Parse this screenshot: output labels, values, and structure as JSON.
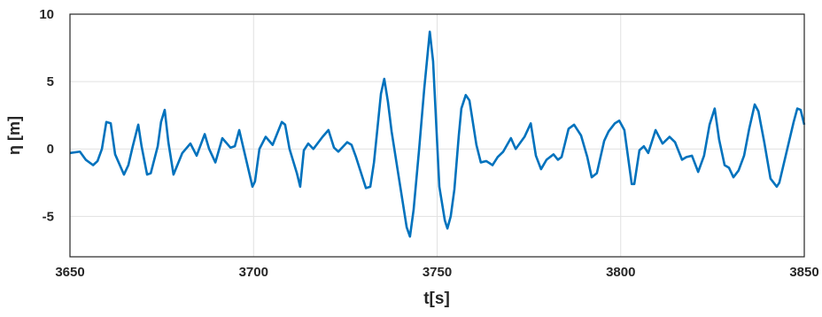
{
  "chart_data": {
    "type": "line",
    "xlabel": "t[s]",
    "ylabel": "η [m]",
    "xlim": [
      3650,
      3850
    ],
    "xticks": [
      3650,
      3700,
      3750,
      3800,
      3850
    ],
    "ylim": [
      -8,
      10
    ],
    "yticks": [
      -5,
      0,
      5,
      10
    ],
    "grid": true,
    "series": [
      {
        "color": "#0072bd",
        "x": [
          3650.0,
          3652.7,
          3654.3,
          3656.3,
          3657.5,
          3658.7,
          3659.9,
          3661.1,
          3662.3,
          3664.7,
          3665.9,
          3667.1,
          3668.6,
          3669.5,
          3671.0,
          3672.0,
          3673.9,
          3674.8,
          3675.8,
          3676.8,
          3678.2,
          3680.6,
          3682.8,
          3684.5,
          3686.7,
          3687.9,
          3689.6,
          3691.5,
          3693.7,
          3694.9,
          3696.1,
          3699.7,
          3700.4,
          3701.6,
          3703.3,
          3705.2,
          3707.7,
          3708.6,
          3709.8,
          3711.8,
          3712.7,
          3713.7,
          3714.9,
          3716.3,
          3718.8,
          3720.4,
          3721.9,
          3723.1,
          3725.5,
          3726.7,
          3727.9,
          3730.6,
          3731.8,
          3732.8,
          3734.7,
          3735.6,
          3736.6,
          3737.6,
          3739.5,
          3741.7,
          3742.6,
          3743.6,
          3745.1,
          3746.5,
          3748.0,
          3748.9,
          3750.6,
          3752.1,
          3752.8,
          3753.7,
          3754.7,
          3755.9,
          3756.6,
          3757.8,
          3758.8,
          3760.7,
          3761.9,
          3763.4,
          3765.1,
          3766.5,
          3768.0,
          3770.1,
          3771.4,
          3773.8,
          3775.5,
          3776.9,
          3778.3,
          3779.8,
          3781.7,
          3782.9,
          3783.9,
          3785.8,
          3787.3,
          3789.2,
          3790.9,
          3792.1,
          3793.5,
          3795.5,
          3796.7,
          3798.4,
          3799.6,
          3801.0,
          3803.0,
          3803.7,
          3805.1,
          3806.3,
          3807.5,
          3809.5,
          3811.4,
          3813.3,
          3814.8,
          3816.7,
          3817.9,
          3819.4,
          3821.1,
          3822.7,
          3824.2,
          3825.6,
          3826.8,
          3828.3,
          3829.5,
          3830.7,
          3832.1,
          3833.6,
          3835.0,
          3836.5,
          3837.5,
          3839.1,
          3840.8,
          3842.5,
          3843.2,
          3847.1,
          3848.1,
          3849.0,
          3850.0
        ],
        "values": [
          -0.3,
          -0.2,
          -0.8,
          -1.2,
          -0.9,
          0.0,
          2.0,
          1.9,
          -0.4,
          -1.9,
          -1.2,
          0.2,
          1.8,
          0.2,
          -1.9,
          -1.8,
          0.2,
          2.0,
          2.9,
          0.5,
          -1.9,
          -0.3,
          0.4,
          -0.5,
          1.1,
          0.0,
          -1.0,
          0.8,
          0.1,
          0.2,
          1.4,
          -2.8,
          -2.4,
          0.0,
          0.9,
          0.3,
          2.0,
          1.8,
          0.0,
          -1.8,
          -2.8,
          -0.1,
          0.4,
          0.0,
          0.9,
          1.4,
          0.1,
          -0.2,
          0.5,
          0.3,
          -0.6,
          -2.9,
          -2.8,
          -1.0,
          4.1,
          5.2,
          3.5,
          1.3,
          -2.0,
          -5.8,
          -6.5,
          -4.5,
          0.0,
          4.5,
          8.7,
          6.5,
          -2.8,
          -5.3,
          -5.9,
          -5.0,
          -3.0,
          1.0,
          3.0,
          4.0,
          3.6,
          0.3,
          -1.0,
          -0.9,
          -1.2,
          -0.6,
          -0.2,
          0.8,
          0.0,
          0.9,
          1.9,
          -0.5,
          -1.5,
          -0.8,
          -0.4,
          -0.8,
          -0.6,
          1.5,
          1.8,
          1.0,
          -0.6,
          -2.1,
          -1.8,
          0.6,
          1.3,
          1.9,
          2.1,
          1.4,
          -2.6,
          -2.6,
          -0.1,
          0.2,
          -0.3,
          1.4,
          0.4,
          0.9,
          0.5,
          -0.8,
          -0.6,
          -0.5,
          -1.7,
          -0.5,
          1.8,
          3.0,
          0.7,
          -1.2,
          -1.4,
          -2.1,
          -1.6,
          -0.5,
          1.5,
          3.3,
          2.8,
          0.5,
          -2.2,
          -2.8,
          -2.5,
          2.0,
          3.0,
          2.9,
          1.8
        ]
      }
    ]
  }
}
